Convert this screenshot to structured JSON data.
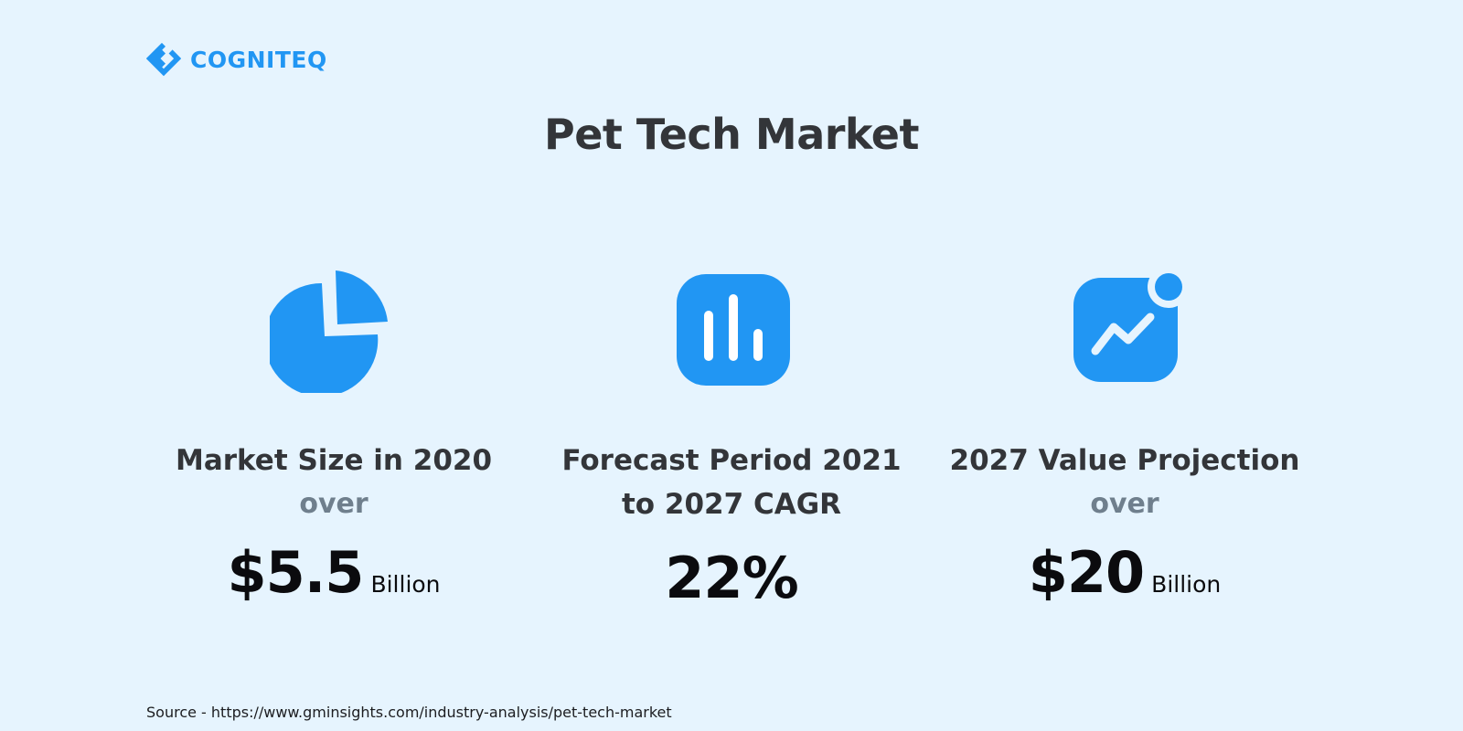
{
  "brand": {
    "name": "COGNITEQ",
    "logo_icon": "cogniteq-logo-icon",
    "color": "#2196f3"
  },
  "title": "Pet Tech Market",
  "stats": [
    {
      "icon": "pie-chart-icon",
      "label_lines": [
        "Market Size in 2020"
      ],
      "qualifier": "over",
      "value": "$5.5",
      "unit": "Billion"
    },
    {
      "icon": "bar-chart-icon",
      "label_lines": [
        "Forecast Period 2021",
        "to 2027 CAGR"
      ],
      "qualifier": "",
      "value": "22%",
      "unit": ""
    },
    {
      "icon": "trend-chart-notification-icon",
      "label_lines": [
        "2027 Value Projection"
      ],
      "qualifier": "over",
      "value": "$20",
      "unit": "Billion"
    }
  ],
  "source": "Source - https://www.gminsights.com/industry-analysis/pet-tech-market",
  "colors": {
    "background": "#e6f4fe",
    "accent": "#2196f3",
    "heading": "#333539",
    "muted": "#6f7f8d",
    "value": "#0b0b0e"
  }
}
